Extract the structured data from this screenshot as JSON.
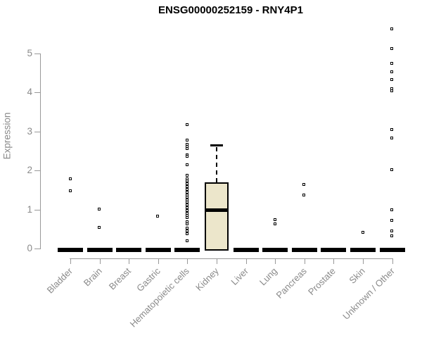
{
  "chart_data": {
    "type": "boxplot",
    "title": "ENSG00000252159 - RNY4P1",
    "ylabel": "Expression",
    "xlabel": "",
    "ylim": [
      0,
      5.7
    ],
    "yticks": [
      0,
      1,
      2,
      3,
      4,
      5
    ],
    "grid": false,
    "legend": false,
    "categories": [
      "Bladder",
      "Brain",
      "Breast",
      "Gastric",
      "Hematopoietic cells",
      "Kidney",
      "Liver",
      "Lung",
      "Pancreas",
      "Prostate",
      "Skin",
      "Unknown / Other"
    ],
    "series": [
      {
        "category": "Bladder",
        "box": {
          "q1": 0,
          "median": 0,
          "q3": 0,
          "whisker_low": 0,
          "whisker_high": 0
        },
        "outliers": [
          1.78,
          1.47
        ]
      },
      {
        "category": "Brain",
        "box": {
          "q1": 0,
          "median": 0,
          "q3": 0,
          "whisker_low": 0,
          "whisker_high": 0
        },
        "outliers": [
          1.01,
          0.53
        ]
      },
      {
        "category": "Breast",
        "box": {
          "q1": 0,
          "median": 0,
          "q3": 0,
          "whisker_low": 0,
          "whisker_high": 0
        },
        "outliers": []
      },
      {
        "category": "Gastric",
        "box": {
          "q1": 0,
          "median": 0,
          "q3": 0,
          "whisker_low": 0,
          "whisker_high": 0
        },
        "outliers": [
          0.83
        ]
      },
      {
        "category": "Hematopoietic cells",
        "box": {
          "q1": 0,
          "median": 0,
          "q3": 0,
          "whisker_low": 0,
          "whisker_high": 0
        },
        "outliers": [
          3.16,
          2.77,
          2.66,
          2.6,
          2.55,
          2.4,
          2.36,
          2.14,
          1.87,
          1.78,
          1.72,
          1.65,
          1.58,
          1.51,
          1.44,
          1.37,
          1.3,
          1.24,
          1.18,
          1.11,
          1.04,
          0.97,
          0.9,
          0.84,
          0.78,
          0.68,
          0.63,
          0.51,
          0.44,
          0.37,
          0.19
        ]
      },
      {
        "category": "Kidney",
        "box": {
          "q1": 0,
          "median": 0.99,
          "q3": 1.7,
          "whisker_low": 0,
          "whisker_high": 2.66
        },
        "outliers": []
      },
      {
        "category": "Liver",
        "box": {
          "q1": 0,
          "median": 0,
          "q3": 0,
          "whisker_low": 0,
          "whisker_high": 0
        },
        "outliers": []
      },
      {
        "category": "Lung",
        "box": {
          "q1": 0,
          "median": 0,
          "q3": 0,
          "whisker_low": 0,
          "whisker_high": 0
        },
        "outliers": [
          0.74,
          0.63
        ]
      },
      {
        "category": "Pancreas",
        "box": {
          "q1": 0,
          "median": 0,
          "q3": 0,
          "whisker_low": 0,
          "whisker_high": 0
        },
        "outliers": [
          1.63,
          1.36
        ]
      },
      {
        "category": "Prostate",
        "box": {
          "q1": 0,
          "median": 0,
          "q3": 0,
          "whisker_low": 0,
          "whisker_high": 0
        },
        "outliers": []
      },
      {
        "category": "Skin",
        "box": {
          "q1": 0,
          "median": 0,
          "q3": 0,
          "whisker_low": 0,
          "whisker_high": 0
        },
        "outliers": [
          0.4
        ]
      },
      {
        "category": "Unknown / Other",
        "box": {
          "q1": 0,
          "median": 0,
          "q3": 0,
          "whisker_low": 0,
          "whisker_high": 0
        },
        "outliers": [
          5.63,
          5.11,
          4.73,
          4.53,
          4.33,
          4.09,
          4.04,
          3.04,
          2.83,
          2.01,
          0.98,
          0.72,
          0.45,
          0.31
        ]
      }
    ],
    "colors": {
      "box_fill": "#ECE6CB",
      "box_border": "#000000",
      "marker": "#000000",
      "axis_line": "#999999",
      "axis_text": "#8a8a8a",
      "title_text": "#000000"
    }
  }
}
